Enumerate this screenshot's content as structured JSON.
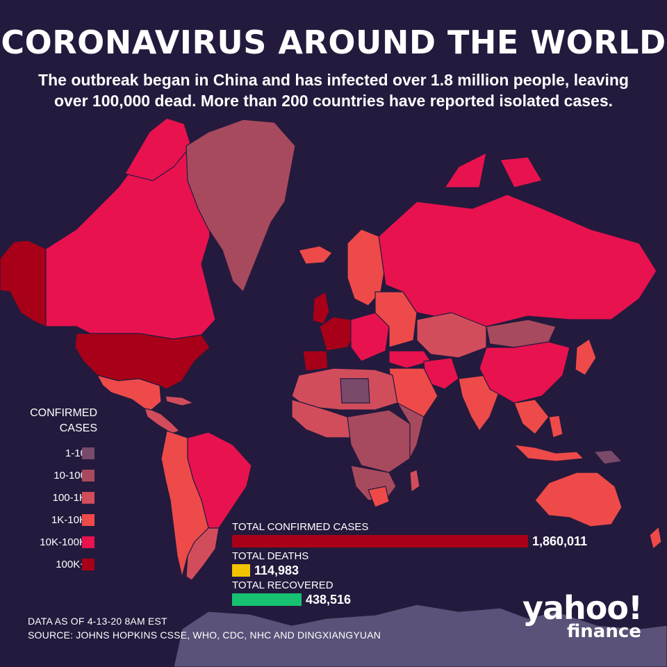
{
  "title": "CORONAVIRUS AROUND THE WORLD",
  "subtitle_line1": "The outbreak began in China and has infected over 1.8 million people, leaving",
  "subtitle_line2": "over 100,000 dead. More than 200 countries have reported isolated cases.",
  "legend": {
    "title_line1": "CONFIRMED",
    "title_line2": "CASES",
    "items": [
      {
        "label": "1-10",
        "color": "#7a4a6a"
      },
      {
        "label": "10-100",
        "color": "#a84a5e"
      },
      {
        "label": "100-1K",
        "color": "#d24d5c"
      },
      {
        "label": "1K-10K",
        "color": "#ee4a4a"
      },
      {
        "label": "10K-100K",
        "color": "#e8124f"
      },
      {
        "label": "100K+",
        "color": "#a80018"
      }
    ]
  },
  "stats": {
    "confirmed": {
      "label": "TOTAL CONFIRMED CASES",
      "value": "1,860,011",
      "number": 1860011,
      "color": "#a80018"
    },
    "deaths": {
      "label": "TOTAL DEATHS",
      "value": "114,983",
      "number": 114983,
      "color": "#f2c300"
    },
    "recovered": {
      "label": "TOTAL RECOVERED",
      "value": "438,516",
      "number": 438516,
      "color": "#17c172"
    }
  },
  "footer": {
    "line1": "DATA AS OF 4-13-20 8AM EST",
    "line2": "SOURCE:  JOHNS HOPKINS CSSE, WHO, CDC, NHC AND DINGXIANGYUAN"
  },
  "logo": {
    "line1": "yahoo!",
    "line2": "finance"
  },
  "colors": {
    "background": "#241a3d",
    "no_data": "#5a5278",
    "border": "#241a3d"
  }
}
